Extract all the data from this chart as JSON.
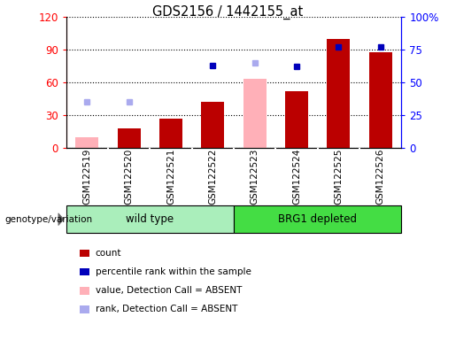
{
  "title": "GDS2156 / 1442155_at",
  "samples": [
    "GSM122519",
    "GSM122520",
    "GSM122521",
    "GSM122522",
    "GSM122523",
    "GSM122524",
    "GSM122525",
    "GSM122526"
  ],
  "count_values": [
    null,
    18,
    27,
    42,
    null,
    52,
    100,
    88
  ],
  "percentile_rank": [
    null,
    null,
    null,
    63,
    null,
    62,
    77,
    77
  ],
  "absent_value": [
    10,
    null,
    null,
    null,
    63,
    null,
    null,
    null
  ],
  "absent_rank": [
    35,
    35,
    null,
    null,
    65,
    null,
    null,
    null
  ],
  "ylim_left": [
    0,
    120
  ],
  "ylim_right": [
    0,
    100
  ],
  "yticks_left": [
    0,
    30,
    60,
    90,
    120
  ],
  "yticks_right": [
    0,
    25,
    50,
    75,
    100
  ],
  "yticklabels_right": [
    "0",
    "25",
    "50",
    "75",
    "100%"
  ],
  "bar_color_red": "#BB0000",
  "bar_color_pink": "#FFB0B8",
  "dot_color_blue": "#0000BB",
  "dot_color_lightblue": "#AAAAEE",
  "group_color_wt": "#AAEEBB",
  "group_color_brg": "#44DD44",
  "wt_indices": [
    0,
    1,
    2,
    3
  ],
  "brg_indices": [
    4,
    5,
    6,
    7
  ],
  "bar_width": 0.55
}
